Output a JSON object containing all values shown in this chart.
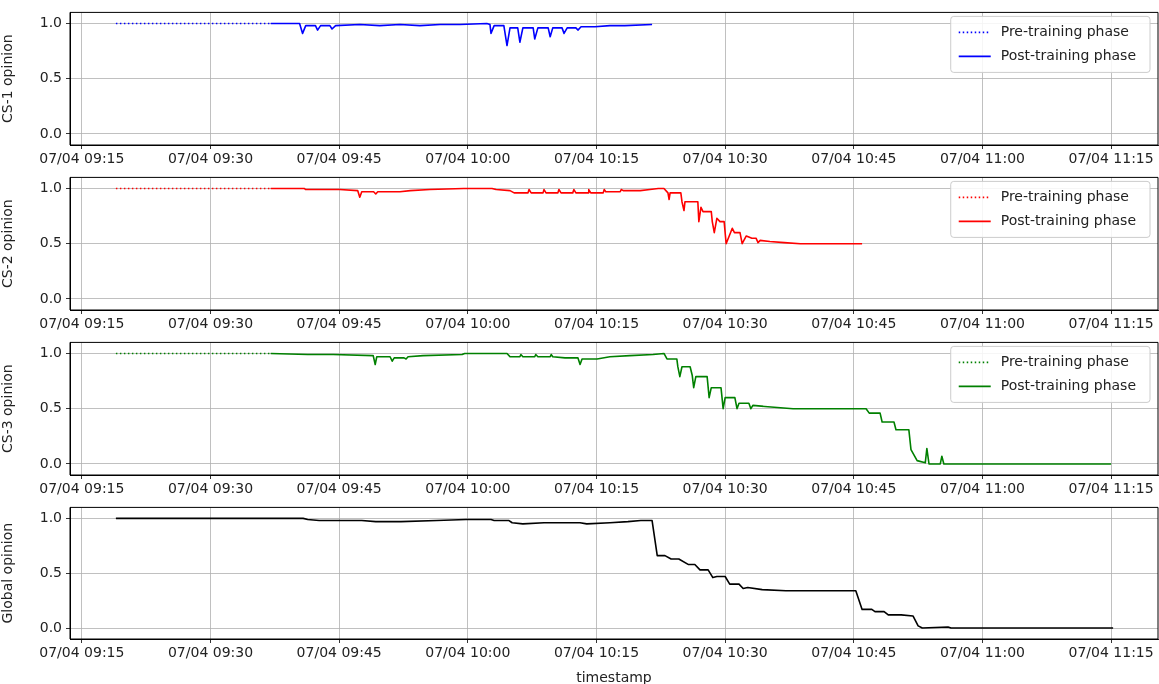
{
  "chart_data": [
    {
      "type": "line",
      "ylabel": "CS-1 opinion",
      "xlim": [
        "--07-04T09:13:37",
        "--07-04T11:20:28"
      ],
      "ylim": [
        -0.1,
        1.1
      ],
      "grid": true,
      "legend": "top right",
      "xticks": [
        {
          "value": "--07-04T09:15",
          "label": "07/04 09:15"
        },
        {
          "value": "--07-04T09:30",
          "label": "07/04 09:30"
        },
        {
          "value": "--07-04T09:45",
          "label": "07/04 09:45"
        },
        {
          "value": "--07-04T10:00",
          "label": "07/04 10:00"
        },
        {
          "value": "--07-04T10:15",
          "label": "07/04 10:15"
        },
        {
          "value": "--07-04T10:30",
          "label": "07/04 10:30"
        },
        {
          "value": "--07-04T10:45",
          "label": "07/04 10:45"
        },
        {
          "value": "--07-04T11:00",
          "label": "07/04 11:00"
        },
        {
          "value": "--07-04T11:15",
          "label": "07/04 11:15"
        }
      ],
      "yticks": [
        {
          "value": 0,
          "label": "0.0"
        },
        {
          "value": 0.5,
          "label": "0.5"
        },
        {
          "value": 1,
          "label": "1.0"
        }
      ],
      "series": [
        {
          "name": "Pre-training phase",
          "color": "#0000ff",
          "line_style": "dotted",
          "x": [
            "--07-04T09:18:58",
            "--07-04T09:37:01"
          ],
          "values": [
            1.0,
            1.0
          ]
        },
        {
          "name": "Post-training phase",
          "color": "#0000ff",
          "line_style": "solid",
          "x": [
            "--07-04T09:37:01",
            "--07-04T09:40:23",
            "--07-04T09:40:44",
            "--07-04T09:41:06",
            "--07-04T09:42:14",
            "--07-04T09:42:29",
            "--07-04T09:42:50",
            "--07-04T09:43:55",
            "--07-04T09:44:10",
            "--07-04T09:44:35",
            "--07-04T09:47:24",
            "--07-04T09:49:44",
            "--07-04T09:52:05",
            "--07-04T09:54:25",
            "--07-04T09:56:46",
            "--07-04T09:59:06",
            "--07-04T10:02:13",
            "--07-04T10:02:35",
            "--07-04T10:02:42",
            "--07-04T10:03:04",
            "--07-04T10:04:12",
            "--07-04T10:04:34",
            "--07-04T10:04:55",
            "--07-04T10:05:49",
            "--07-04T10:06:04",
            "--07-04T10:06:25",
            "--07-04T10:07:37",
            "--07-04T10:07:48",
            "--07-04T10:08:10",
            "--07-04T10:09:22",
            "--07-04T10:09:36",
            "--07-04T10:09:54",
            "--07-04T10:10:59",
            "--07-04T10:11:13",
            "--07-04T10:11:35",
            "--07-04T10:12:36",
            "--07-04T10:12:50",
            "--07-04T10:13:12",
            "--07-04T10:14:49",
            "--07-04T10:16:34",
            "--07-04T10:18:18",
            "--07-04T10:21:29"
          ],
          "values": [
            1.0,
            1.0,
            0.91,
            0.98,
            0.98,
            0.94,
            0.98,
            0.98,
            0.95,
            0.98,
            0.99,
            0.98,
            0.99,
            0.98,
            0.99,
            0.99,
            1.0,
            0.99,
            0.91,
            0.98,
            0.98,
            0.8,
            0.96,
            0.96,
            0.83,
            0.96,
            0.96,
            0.86,
            0.96,
            0.96,
            0.88,
            0.96,
            0.96,
            0.91,
            0.96,
            0.96,
            0.94,
            0.97,
            0.97,
            0.98,
            0.98,
            0.99
          ]
        }
      ]
    },
    {
      "type": "line",
      "ylabel": "CS-2 opinion",
      "xlim": [
        "--07-04T09:13:37",
        "--07-04T11:20:28"
      ],
      "ylim": [
        -0.1,
        1.1
      ],
      "grid": true,
      "legend": "top right",
      "xticks": [
        {
          "value": "--07-04T09:15",
          "label": "07/04 09:15"
        },
        {
          "value": "--07-04T09:30",
          "label": "07/04 09:30"
        },
        {
          "value": "--07-04T09:45",
          "label": "07/04 09:45"
        },
        {
          "value": "--07-04T10:00",
          "label": "07/04 10:00"
        },
        {
          "value": "--07-04T10:15",
          "label": "07/04 10:15"
        },
        {
          "value": "--07-04T10:30",
          "label": "07/04 10:30"
        },
        {
          "value": "--07-04T10:45",
          "label": "07/04 10:45"
        },
        {
          "value": "--07-04T11:00",
          "label": "07/04 11:00"
        },
        {
          "value": "--07-04T11:15",
          "label": "07/04 11:15"
        }
      ],
      "yticks": [
        {
          "value": 0,
          "label": "0.0"
        },
        {
          "value": 0.5,
          "label": "0.5"
        },
        {
          "value": 1,
          "label": "1.0"
        }
      ],
      "series": [
        {
          "name": "Pre-training phase",
          "color": "#ff0000",
          "line_style": "dotted",
          "x": [
            "--07-04T09:18:58",
            "--07-04T09:37:01"
          ],
          "values": [
            1.0,
            1.0
          ]
        },
        {
          "name": "Post-training phase",
          "color": "#ff0000",
          "line_style": "solid",
          "x": [
            "--07-04T09:37:01",
            "--07-04T09:40:55",
            "--07-04T09:41:06",
            "--07-04T09:45:04",
            "--07-04T09:47:10",
            "--07-04T09:47:24",
            "--07-04T09:47:38",
            "--07-04T09:49:01",
            "--07-04T09:49:16",
            "--07-04T09:49:30",
            "--07-04T09:52:05",
            "--07-04T09:53:17",
            "--07-04T09:55:34",
            "--07-04T09:59:31",
            "--07-04T10:02:49",
            "--07-04T10:03:18",
            "--07-04T10:04:55",
            "--07-04T10:05:24",
            "--07-04T10:07:01",
            "--07-04T10:07:08",
            "--07-04T10:07:23",
            "--07-04T10:08:46",
            "--07-04T10:08:53",
            "--07-04T10:09:07",
            "--07-04T10:10:30",
            "--07-04T10:10:37",
            "--07-04T10:10:52",
            "--07-04T10:12:14",
            "--07-04T10:12:22",
            "--07-04T10:12:36",
            "--07-04T10:14:02",
            "--07-04T10:14:06",
            "--07-04T10:14:20",
            "--07-04T10:15:47",
            "--07-04T10:15:54",
            "--07-04T10:16:05",
            "--07-04T10:17:46",
            "--07-04T10:17:53",
            "--07-04T10:18:07",
            "--07-04T10:20:06",
            "--07-04T10:21:14",
            "--07-04T10:22:12",
            "--07-04T10:22:52",
            "--07-04T10:23:20",
            "--07-04T10:23:28",
            "--07-04T10:23:35",
            "--07-04T10:24:50",
            "--07-04T10:24:58",
            "--07-04T10:25:12",
            "--07-04T10:25:19",
            "--07-04T10:26:49",
            "--07-04T10:26:56",
            "--07-04T10:27:11",
            "--07-04T10:27:25",
            "--07-04T10:28:23",
            "--07-04T10:28:30",
            "--07-04T10:28:44",
            "--07-04T10:29:02",
            "--07-04T10:29:24",
            "--07-04T10:29:53",
            "--07-04T10:30:07",
            "--07-04T10:30:50",
            "--07-04T10:31:05",
            "--07-04T10:31:44",
            "--07-04T10:31:59",
            "--07-04T10:32:28",
            "--07-04T10:33:07",
            "--07-04T10:33:36",
            "--07-04T10:33:50",
            "--07-04T10:34:05",
            "--07-04T10:35:13",
            "--07-04T10:36:54",
            "--07-04T10:38:46",
            "--07-04T10:45:58"
          ],
          "values": [
            1.0,
            1.0,
            0.99,
            0.99,
            0.98,
            0.92,
            0.97,
            0.97,
            0.95,
            0.97,
            0.97,
            0.98,
            0.99,
            1.0,
            1.0,
            0.99,
            0.98,
            0.96,
            0.96,
            0.99,
            0.96,
            0.96,
            0.99,
            0.96,
            0.96,
            0.99,
            0.96,
            0.96,
            0.99,
            0.96,
            0.96,
            0.99,
            0.96,
            0.96,
            0.99,
            0.97,
            0.97,
            0.99,
            0.98,
            0.98,
            0.99,
            1.0,
            1.0,
            0.96,
            0.9,
            0.96,
            0.96,
            0.88,
            0.8,
            0.88,
            0.88,
            0.7,
            0.83,
            0.79,
            0.79,
            0.7,
            0.6,
            0.73,
            0.7,
            0.7,
            0.5,
            0.64,
            0.6,
            0.6,
            0.5,
            0.57,
            0.55,
            0.55,
            0.51,
            0.53,
            0.52,
            0.51,
            0.5,
            0.5
          ]
        }
      ]
    },
    {
      "type": "line",
      "ylabel": "CS-3 opinion",
      "xlim": [
        "--07-04T09:13:37",
        "--07-04T11:20:28"
      ],
      "ylim": [
        -0.1,
        1.1
      ],
      "grid": true,
      "legend": "top right",
      "xticks": [
        {
          "value": "--07-04T09:15",
          "label": "07/04 09:15"
        },
        {
          "value": "--07-04T09:30",
          "label": "07/04 09:30"
        },
        {
          "value": "--07-04T09:45",
          "label": "07/04 09:45"
        },
        {
          "value": "--07-04T10:00",
          "label": "07/04 10:00"
        },
        {
          "value": "--07-04T10:15",
          "label": "07/04 10:15"
        },
        {
          "value": "--07-04T10:30",
          "label": "07/04 10:30"
        },
        {
          "value": "--07-04T10:45",
          "label": "07/04 10:45"
        },
        {
          "value": "--07-04T11:00",
          "label": "07/04 11:00"
        },
        {
          "value": "--07-04T11:15",
          "label": "07/04 11:15"
        }
      ],
      "yticks": [
        {
          "value": 0,
          "label": "0.0"
        },
        {
          "value": 0.5,
          "label": "0.5"
        },
        {
          "value": 1,
          "label": "1.0"
        }
      ],
      "series": [
        {
          "name": "Pre-training phase",
          "color": "#008000",
          "line_style": "dotted",
          "x": [
            "--07-04T09:18:58",
            "--07-04T09:37:01"
          ],
          "values": [
            1.0,
            1.0
          ]
        },
        {
          "name": "Post-training phase",
          "color": "#008000",
          "line_style": "solid",
          "x": [
            "--07-04T09:37:01",
            "--07-04T09:41:20",
            "--07-04T09:44:17",
            "--07-04T09:48:58",
            "--07-04T09:49:12",
            "--07-04T09:49:23",
            "--07-04T09:50:56",
            "--07-04T09:51:11",
            "--07-04T09:51:25",
            "--07-04T09:52:34",
            "--07-04T09:52:48",
            "--07-04T09:53:02",
            "--07-04T09:54:47",
            "--07-04T09:59:20",
            "--07-04T09:59:38",
            "--07-04T10:04:34",
            "--07-04T10:04:55",
            "--07-04T10:06:04",
            "--07-04T10:06:11",
            "--07-04T10:06:25",
            "--07-04T10:07:48",
            "--07-04T10:07:55",
            "--07-04T10:08:10",
            "--07-04T10:09:36",
            "--07-04T10:09:43",
            "--07-04T10:09:54",
            "--07-04T10:11:20",
            "--07-04T10:12:50",
            "--07-04T10:13:05",
            "--07-04T10:13:19",
            "--07-04T10:15:04",
            "--07-04T10:16:34",
            "--07-04T10:18:54",
            "--07-04T10:21:36",
            "--07-04T10:22:52",
            "--07-04T10:23:13",
            "--07-04T10:24:22",
            "--07-04T10:24:29",
            "--07-04T10:24:43",
            "--07-04T10:24:58",
            "--07-04T10:25:55",
            "--07-04T10:26:10",
            "--07-04T10:26:20",
            "--07-04T10:26:35",
            "--07-04T10:27:54",
            "--07-04T10:28:08",
            "--07-04T10:28:23",
            "--07-04T10:29:31",
            "--07-04T10:29:46",
            "--07-04T10:30:00",
            "--07-04T10:31:08",
            "--07-04T10:31:23",
            "--07-04T10:31:37",
            "--07-04T10:32:46",
            "--07-04T10:33:00",
            "--07-04T10:33:14",
            "--07-04T10:34:37",
            "--07-04T10:37:55",
            "--07-04T10:41:10",
            "--07-04T10:46:26",
            "--07-04T10:46:48",
            "--07-04T10:48:04",
            "--07-04T10:48:18",
            "--07-04T10:49:41",
            "--07-04T10:49:55",
            "--07-04T10:51:25",
            "--07-04T10:51:40",
            "--07-04T10:52:23",
            "--07-04T10:53:20",
            "--07-04T10:53:31",
            "--07-04T10:53:46",
            "--07-04T10:55:05",
            "--07-04T10:55:16",
            "--07-04T10:55:30",
            "--07-04T11:15:00"
          ],
          "values": [
            1.0,
            0.99,
            0.99,
            0.98,
            0.9,
            0.97,
            0.97,
            0.93,
            0.96,
            0.96,
            0.95,
            0.97,
            0.98,
            0.99,
            1.0,
            1.0,
            0.97,
            0.97,
            0.99,
            0.97,
            0.97,
            0.99,
            0.97,
            0.97,
            0.99,
            0.97,
            0.96,
            0.96,
            0.9,
            0.95,
            0.95,
            0.97,
            0.98,
            0.99,
            1.0,
            0.95,
            0.95,
            0.88,
            0.79,
            0.88,
            0.88,
            0.8,
            0.69,
            0.79,
            0.79,
            0.6,
            0.69,
            0.69,
            0.5,
            0.6,
            0.6,
            0.5,
            0.55,
            0.55,
            0.5,
            0.53,
            0.52,
            0.5,
            0.5,
            0.5,
            0.46,
            0.46,
            0.38,
            0.38,
            0.31,
            0.31,
            0.13,
            0.03,
            0.01,
            0.14,
            0.0,
            0.0,
            0.07,
            0.0,
            0.0
          ]
        }
      ]
    },
    {
      "type": "line",
      "ylabel": "Global opinion",
      "xlabel": "timestamp",
      "xlim": [
        "--07-04T09:13:37",
        "--07-04T11:20:28"
      ],
      "ylim": [
        -0.1,
        1.1
      ],
      "grid": true,
      "xticks": [
        {
          "value": "--07-04T09:15",
          "label": "07/04 09:15"
        },
        {
          "value": "--07-04T09:30",
          "label": "07/04 09:30"
        },
        {
          "value": "--07-04T09:45",
          "label": "07/04 09:45"
        },
        {
          "value": "--07-04T10:00",
          "label": "07/04 10:00"
        },
        {
          "value": "--07-04T10:15",
          "label": "07/04 10:15"
        },
        {
          "value": "--07-04T10:30",
          "label": "07/04 10:30"
        },
        {
          "value": "--07-04T10:45",
          "label": "07/04 10:45"
        },
        {
          "value": "--07-04T11:00",
          "label": "07/04 11:00"
        },
        {
          "value": "--07-04T11:15",
          "label": "07/04 11:15"
        }
      ],
      "yticks": [
        {
          "value": 0,
          "label": "0.0"
        },
        {
          "value": 0.5,
          "label": "0.5"
        },
        {
          "value": 1,
          "label": "1.0"
        }
      ],
      "series": [
        {
          "color": "#000000",
          "line_style": "solid",
          "x": [
            "--07-04T09:18:58",
            "--07-04T09:40:48",
            "--07-04T09:41:20",
            "--07-04T09:42:40",
            "--07-04T09:47:17",
            "--07-04T09:47:38",
            "--07-04T09:49:16",
            "--07-04T09:52:12",
            "--07-04T09:56:24",
            "--07-04T09:59:46",
            "--07-04T10:02:42",
            "--07-04T10:03:04",
            "--07-04T10:04:48",
            "--07-04T10:05:10",
            "--07-04T10:06:25",
            "--07-04T10:08:53",
            "--07-04T10:13:05",
            "--07-04T10:13:52",
            "--07-04T10:16:34",
            "--07-04T10:18:40",
            "--07-04T10:20:10",
            "--07-04T10:21:29",
            "--07-04T10:22:05",
            "--07-04T10:22:59",
            "--07-04T10:23:42",
            "--07-04T10:24:36",
            "--07-04T10:25:41",
            "--07-04T10:26:28",
            "--07-04T10:27:04",
            "--07-04T10:28:01",
            "--07-04T10:28:34",
            "--07-04T10:29:02",
            "--07-04T10:30:00",
            "--07-04T10:30:32",
            "--07-04T10:31:37",
            "--07-04T10:32:06",
            "--07-04T10:32:38",
            "--07-04T10:34:19",
            "--07-04T10:37:05",
            "--07-04T10:45:14",
            "--07-04T10:45:58",
            "--07-04T10:47:06",
            "--07-04T10:47:28",
            "--07-04T10:48:32",
            "--07-04T10:49:01",
            "--07-04T10:50:31",
            "--07-04T10:51:54",
            "--07-04T10:52:30",
            "--07-04T10:52:59",
            "--07-04T10:55:59",
            "--07-04T10:56:20",
            "--07-04T11:15:14"
          ],
          "values": [
            1.0,
            1.0,
            0.99,
            0.98,
            0.98,
            0.98,
            0.97,
            0.97,
            0.98,
            0.99,
            0.99,
            0.98,
            0.98,
            0.96,
            0.95,
            0.96,
            0.96,
            0.95,
            0.96,
            0.97,
            0.98,
            0.98,
            0.66,
            0.66,
            0.63,
            0.63,
            0.58,
            0.58,
            0.53,
            0.53,
            0.46,
            0.47,
            0.47,
            0.4,
            0.4,
            0.36,
            0.37,
            0.35,
            0.34,
            0.34,
            0.17,
            0.17,
            0.15,
            0.15,
            0.12,
            0.12,
            0.11,
            0.02,
            0.0,
            0.01,
            0.0,
            0.0
          ]
        }
      ]
    }
  ]
}
